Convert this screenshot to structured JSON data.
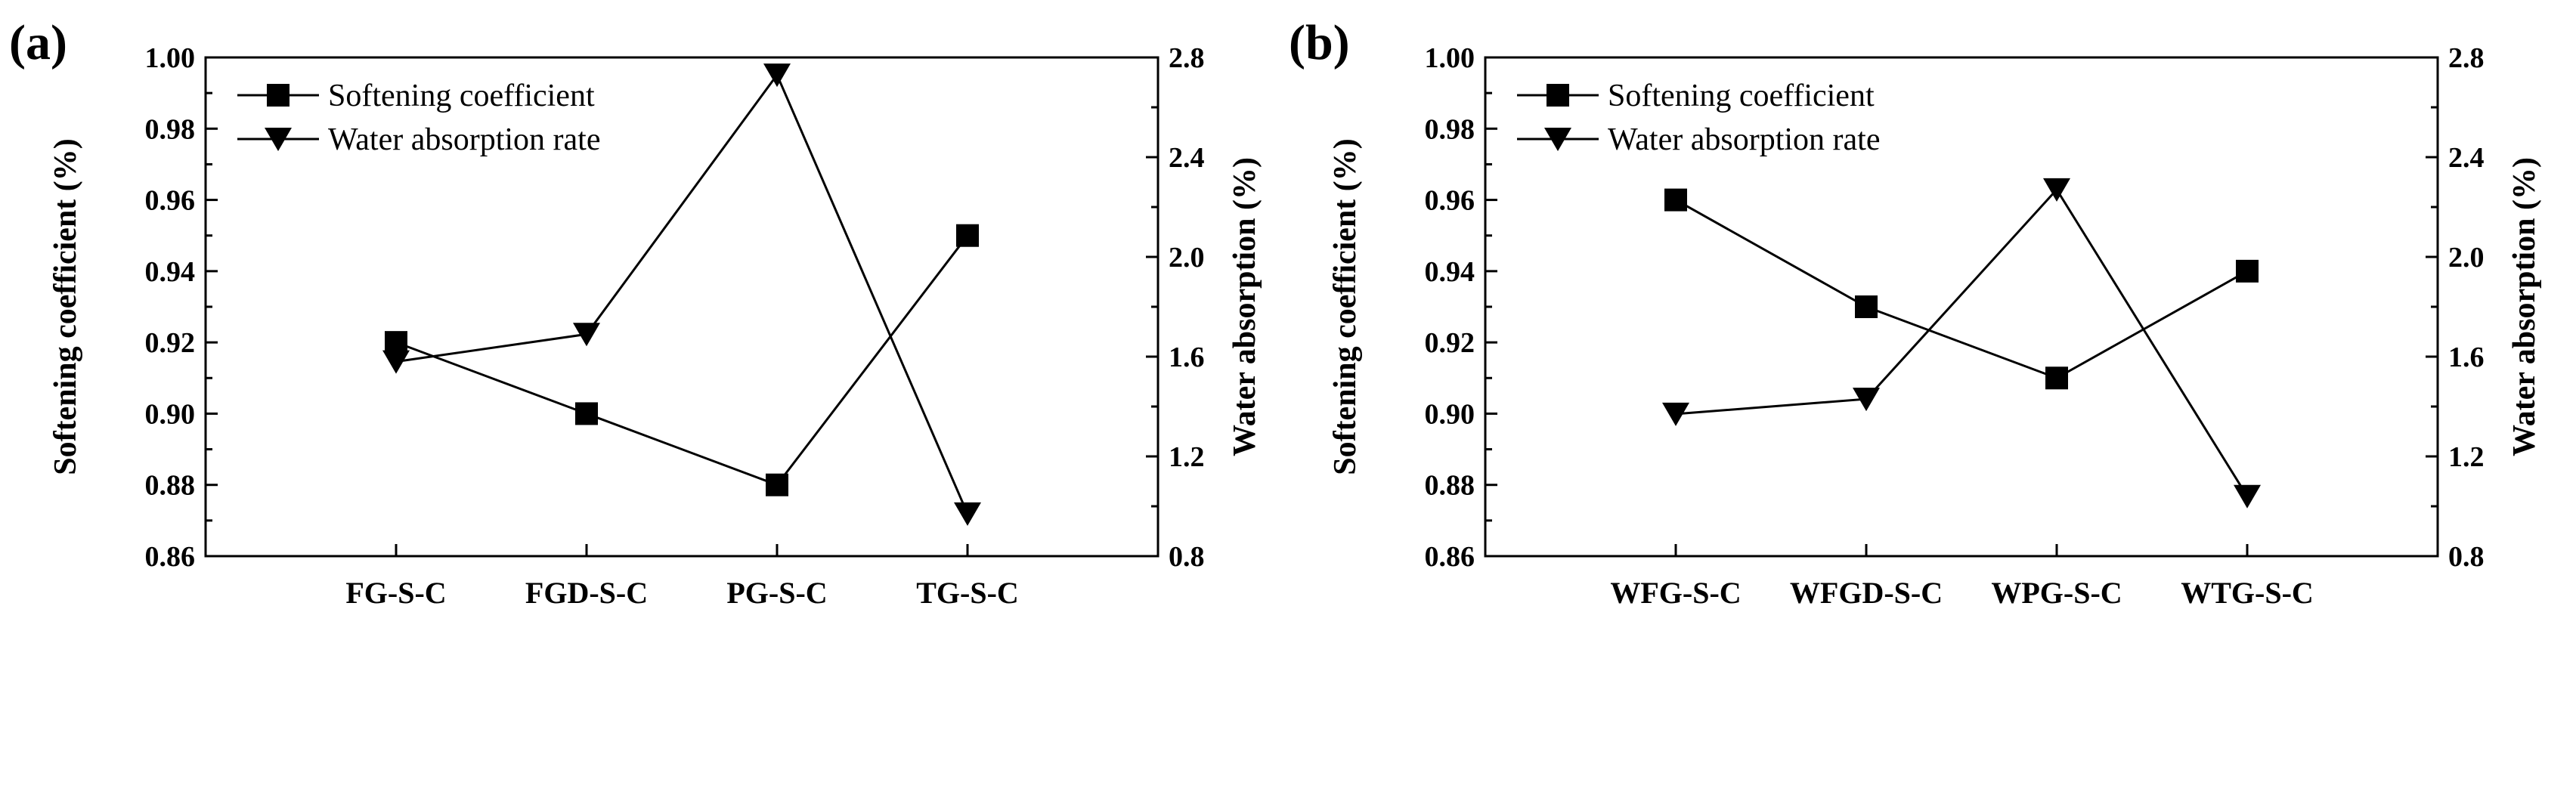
{
  "chart_data": [
    {
      "type": "line",
      "panel_label": "(a)",
      "categories": [
        "FG-S-C",
        "FGD-S-C",
        "PG-S-C",
        "TG-S-C"
      ],
      "ylabel": "Softening coefficient (%)",
      "y2label": "Water absorption (%)",
      "ylim": [
        0.86,
        1.0
      ],
      "y2lim": [
        0.8,
        2.8
      ],
      "yticks": [
        "0.86",
        "0.88",
        "0.90",
        "0.92",
        "0.94",
        "0.96",
        "0.98",
        "1.00"
      ],
      "y2ticks": [
        "0.8",
        "1.2",
        "1.6",
        "2.0",
        "2.4",
        "2.8"
      ],
      "legend_position": "top-left",
      "series": [
        {
          "name": "Softening coefficient",
          "axis": "left",
          "marker": "square",
          "values": [
            0.92,
            0.9,
            0.88,
            0.95
          ]
        },
        {
          "name": "Water absorption rate",
          "axis": "right",
          "marker": "triangle-down",
          "values": [
            1.58,
            1.69,
            2.73,
            0.97
          ]
        }
      ]
    },
    {
      "type": "line",
      "panel_label": "(b)",
      "categories": [
        "WFG-S-C",
        "WFGD-S-C",
        "WPG-S-C",
        "WTG-S-C"
      ],
      "ylabel": "Softening coefficient (%)",
      "y2label": "Water absorption (%)",
      "ylim": [
        0.86,
        1.0
      ],
      "y2lim": [
        0.8,
        2.8
      ],
      "yticks": [
        "0.86",
        "0.88",
        "0.90",
        "0.92",
        "0.94",
        "0.96",
        "0.98",
        "1.00"
      ],
      "y2ticks": [
        "0.8",
        "1.2",
        "1.6",
        "2.0",
        "2.4",
        "2.8"
      ],
      "legend_position": "top-left",
      "series": [
        {
          "name": "Softening coefficient",
          "axis": "left",
          "marker": "square",
          "values": [
            0.96,
            0.93,
            0.91,
            0.94
          ]
        },
        {
          "name": "Water absorption rate",
          "axis": "right",
          "marker": "triangle-down",
          "values": [
            1.37,
            1.43,
            2.27,
            1.04
          ]
        }
      ]
    }
  ]
}
